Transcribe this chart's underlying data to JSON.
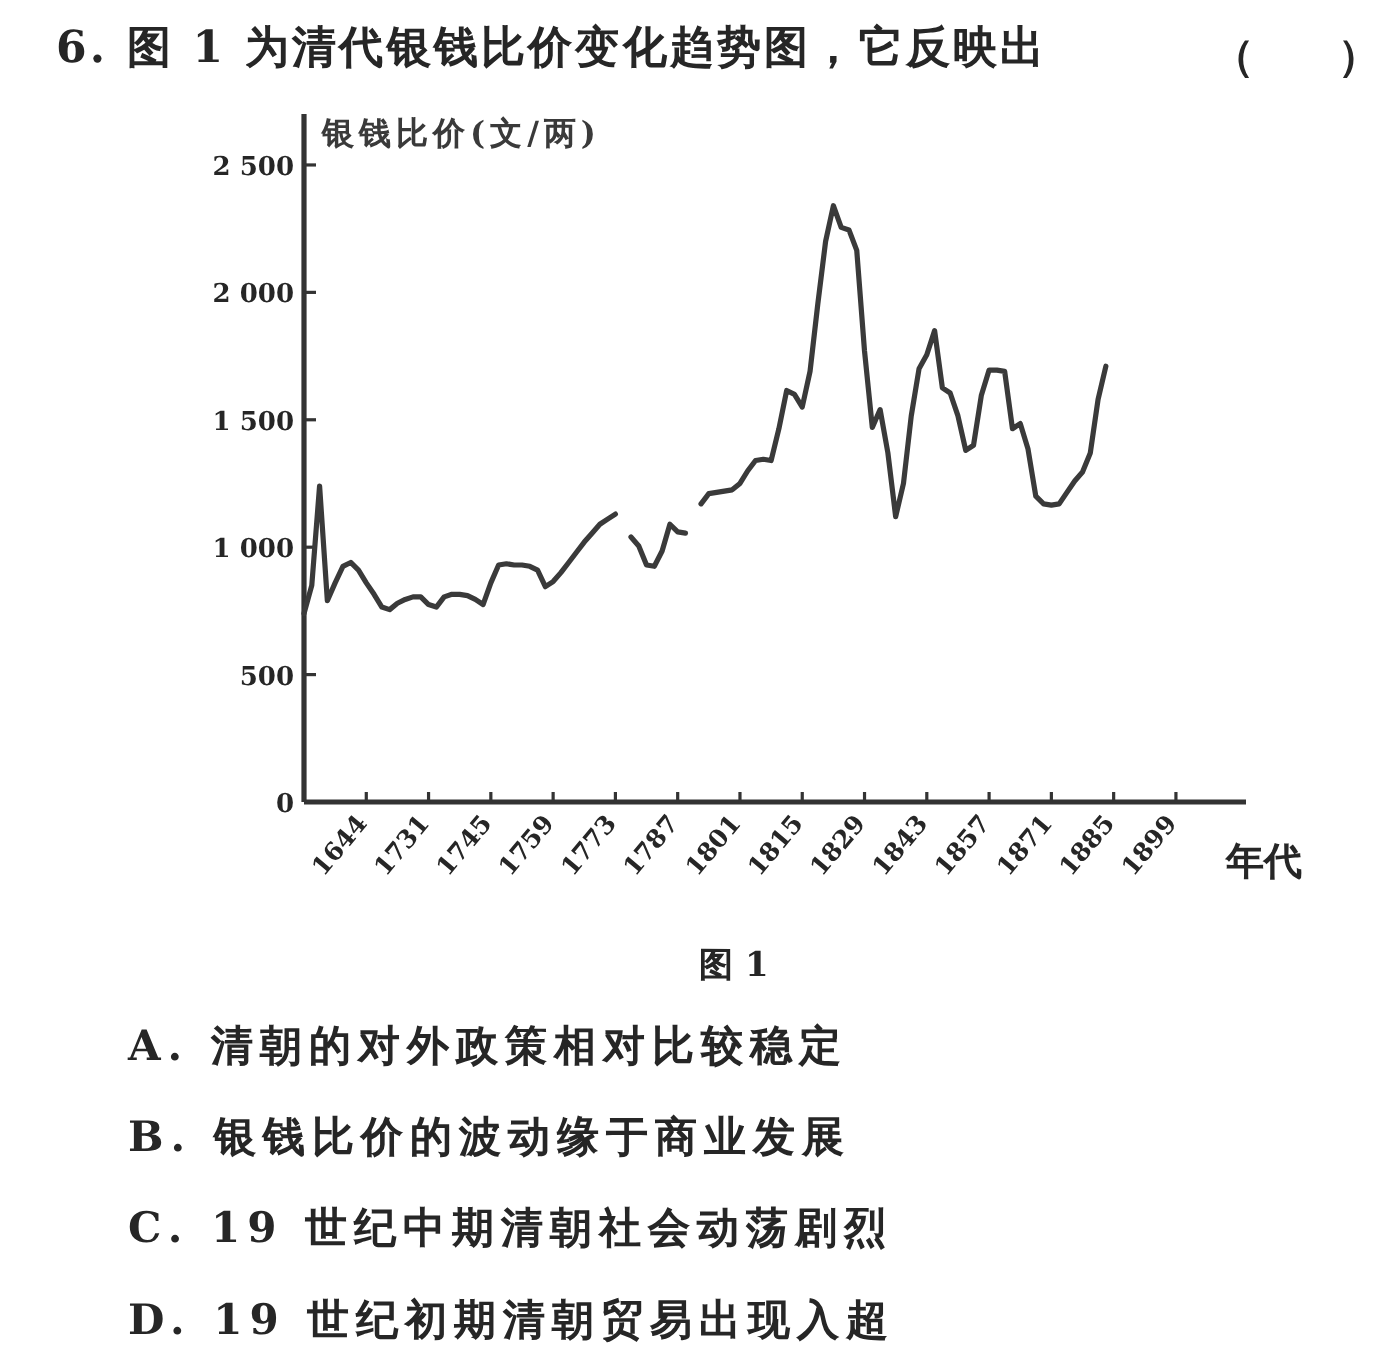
{
  "chart_data": {
    "type": "line",
    "title": "6. 图 1 为清代银钱比价变化趋势图，它反映出",
    "ylabel": "银钱比价(文/两)",
    "xlabel": "年代",
    "categories": [
      null,
      null,
      null,
      null,
      null,
      null,
      null,
      null,
      "1644",
      null,
      null,
      null,
      null,
      null,
      null,
      null,
      "1731",
      null,
      null,
      null,
      null,
      null,
      null,
      null,
      "1745",
      null,
      null,
      null,
      null,
      null,
      null,
      null,
      "1759",
      null,
      null,
      null,
      null,
      null,
      null,
      null,
      "1773",
      null,
      null,
      null,
      null,
      null,
      null,
      null,
      "1787",
      null,
      null,
      null,
      null,
      null,
      null,
      null,
      "1801",
      null,
      null,
      null,
      null,
      null,
      null,
      null,
      "1815",
      null,
      null,
      null,
      null,
      null,
      null,
      null,
      "1829",
      null,
      null,
      null,
      null,
      null,
      null,
      null,
      "1843",
      null,
      null,
      null,
      null,
      null,
      null,
      null,
      "1857",
      null,
      null,
      null,
      null,
      null,
      null,
      null,
      "1871",
      null,
      null,
      null,
      null,
      null,
      null,
      null,
      "1885",
      null,
      null,
      null,
      null,
      null,
      null,
      null,
      "1899",
      null,
      null,
      null,
      null,
      null,
      null,
      null,
      null,
      null
    ],
    "series": [
      {
        "color": "#3a3a3a",
        "values": [
          740,
          850,
          1240,
          790,
          860,
          925,
          940,
          910,
          860,
          815,
          765,
          755,
          780,
          795,
          805,
          805,
          775,
          765,
          805,
          815,
          815,
          810,
          795,
          775,
          860,
          930,
          935,
          930,
          930,
          925,
          910,
          845,
          865,
          900,
          940,
          980,
          1020,
          1055,
          1090,
          1110,
          1130,
          null,
          1040,
          1005,
          930,
          925,
          985,
          1090,
          1060,
          1055,
          null,
          1170,
          1210,
          1215,
          1220,
          1225,
          1250,
          1300,
          1340,
          1345,
          1340,
          1465,
          1615,
          1600,
          1550,
          1690,
          1955,
          2200,
          2340,
          2255,
          2245,
          2165,
          1770,
          1470,
          1540,
          1370,
          1120,
          1250,
          1515,
          1700,
          1755,
          1850,
          1625,
          1605,
          1515,
          1380,
          1400,
          1595,
          1695,
          1695,
          1690,
          1465,
          1485,
          1385,
          1200,
          1170,
          1165,
          1170,
          1215,
          1260,
          1295,
          1370,
          1580,
          1710,
          null,
          null,
          null,
          null,
          null,
          null,
          null,
          null,
          null,
          null,
          null,
          null,
          null,
          null,
          null,
          null,
          null,
          null
        ]
      }
    ],
    "ylim": [
      0,
      2700
    ],
    "yticks": [
      0,
      500,
      {
        "value": 1000,
        "label": "1 000"
      },
      {
        "value": 1500,
        "label": "1 500"
      },
      {
        "value": 2000,
        "label": "2 000"
      },
      {
        "value": 2500,
        "label": "2 500"
      }
    ],
    "annotations": [
      "（　　）",
      "图 1",
      "A. 清朝的对外政策相对比较稳定",
      "B. 银钱比价的波动缘于商业发展",
      "C. 19 世纪中期清朝社会动荡剧烈",
      "D. 19 世纪初期清朝贸易出现入超"
    ]
  }
}
